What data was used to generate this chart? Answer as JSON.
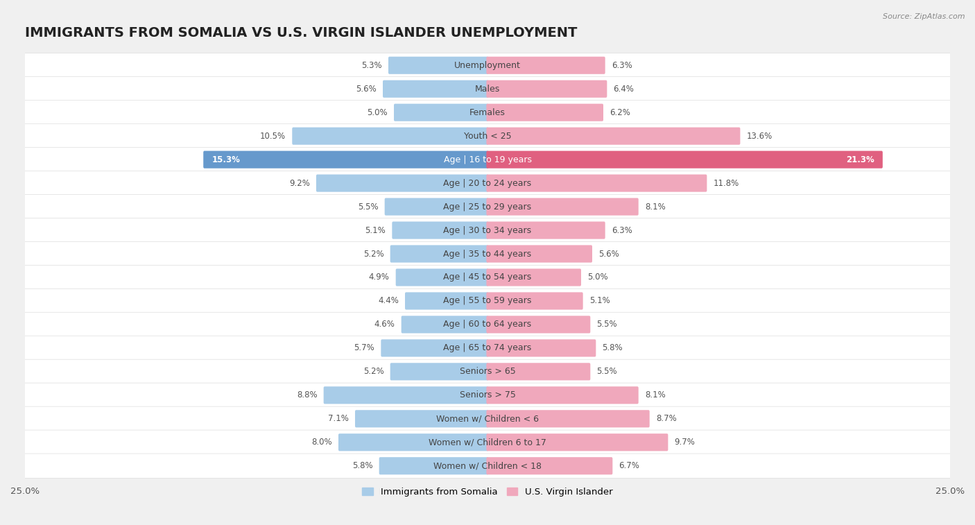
{
  "title": "IMMIGRANTS FROM SOMALIA VS U.S. VIRGIN ISLANDER UNEMPLOYMENT",
  "source": "Source: ZipAtlas.com",
  "categories": [
    "Unemployment",
    "Males",
    "Females",
    "Youth < 25",
    "Age | 16 to 19 years",
    "Age | 20 to 24 years",
    "Age | 25 to 29 years",
    "Age | 30 to 34 years",
    "Age | 35 to 44 years",
    "Age | 45 to 54 years",
    "Age | 55 to 59 years",
    "Age | 60 to 64 years",
    "Age | 65 to 74 years",
    "Seniors > 65",
    "Seniors > 75",
    "Women w/ Children < 6",
    "Women w/ Children 6 to 17",
    "Women w/ Children < 18"
  ],
  "somalia_values": [
    5.3,
    5.6,
    5.0,
    10.5,
    15.3,
    9.2,
    5.5,
    5.1,
    5.2,
    4.9,
    4.4,
    4.6,
    5.7,
    5.2,
    8.8,
    7.1,
    8.0,
    5.8
  ],
  "virgin_values": [
    6.3,
    6.4,
    6.2,
    13.6,
    21.3,
    11.8,
    8.1,
    6.3,
    5.6,
    5.0,
    5.1,
    5.5,
    5.8,
    5.5,
    8.1,
    8.7,
    9.7,
    6.7
  ],
  "somalia_color": "#A8CCE8",
  "virgin_color": "#F0A8BC",
  "somalia_highlight_color": "#6699CC",
  "virgin_highlight_color": "#E06080",
  "highlight_row": 4,
  "xlim": 25.0,
  "background_color": "#f0f0f0",
  "row_bg_color": "#ffffff",
  "row_alt_bg_color": "#f8f8f8",
  "row_border_color": "#dddddd",
  "title_fontsize": 14,
  "label_fontsize": 9,
  "value_fontsize": 8.5,
  "legend_fontsize": 9.5
}
